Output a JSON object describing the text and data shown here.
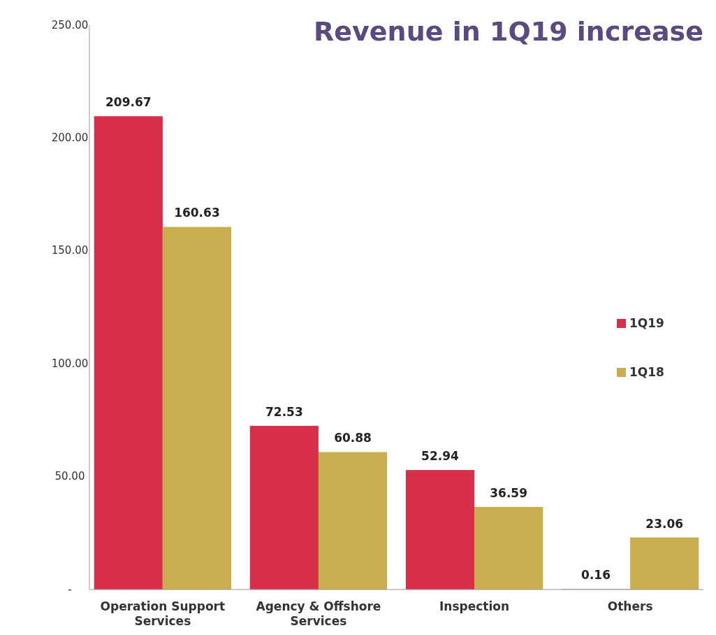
{
  "chart_data": {
    "type": "bar",
    "title": "Revenue in 1Q19 increase",
    "categories": [
      "Operation Support Services",
      "Agency & Offshore Services",
      "Inspection",
      "Others"
    ],
    "series": [
      {
        "name": "1Q19",
        "color": "#d8304a",
        "values": [
          209.67,
          72.53,
          52.94,
          0.16
        ]
      },
      {
        "name": "1Q18",
        "color": "#c9ad4e",
        "values": [
          160.63,
          60.88,
          36.59,
          23.06
        ]
      }
    ],
    "ylim": [
      0,
      250
    ],
    "yticks": [
      {
        "value": 0,
        "label": "-"
      },
      {
        "value": 50,
        "label": "50.00"
      },
      {
        "value": 100,
        "label": "100.00"
      },
      {
        "value": 150,
        "label": "150.00"
      },
      {
        "value": 200,
        "label": "200.00"
      },
      {
        "value": 250,
        "label": "250.00"
      }
    ],
    "data_labels": true,
    "legend": "right",
    "grid": false
  }
}
